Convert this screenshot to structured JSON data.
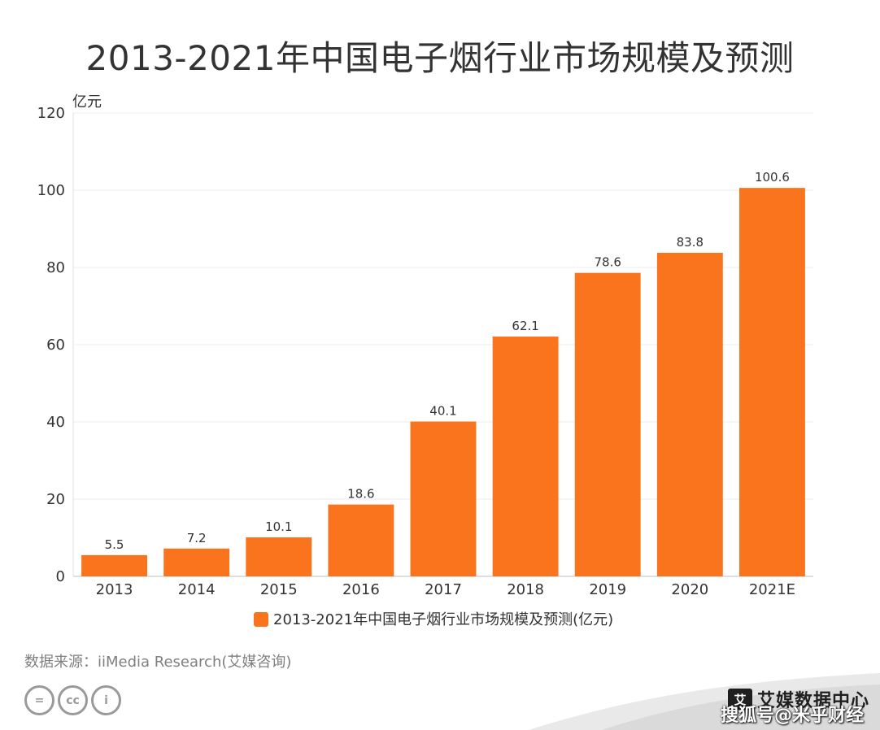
{
  "title": "2013-2021年中国电子烟行业市场规模及预测",
  "source": "数据来源：iiMedia Research(艾媒咨询)",
  "brand": {
    "logo_text": "艾",
    "name": "艾媒数据中心"
  },
  "watermark": "搜狐号@米乎财经",
  "license_icons": [
    "=",
    "cc",
    "i"
  ],
  "colors": {
    "bar": "#fa741e",
    "axis_text": "#333333",
    "grid": "#ececec"
  },
  "chart_data": {
    "type": "bar",
    "categories": [
      "2013",
      "2014",
      "2015",
      "2016",
      "2017",
      "2018",
      "2019",
      "2020",
      "2021E"
    ],
    "series": [
      {
        "name": "2013-2021年中国电子烟行业市场规模及预测(亿元)",
        "values": [
          5.5,
          7.2,
          10.1,
          18.6,
          40.1,
          62.1,
          78.6,
          83.8,
          100.6
        ],
        "labels": [
          "5.5",
          "7.2",
          "10.1",
          "18.6",
          "40.1",
          "62.1",
          "78.6",
          "83.8",
          "100.6"
        ]
      }
    ],
    "ylabel": "亿元",
    "ylim": [
      0,
      120
    ],
    "yticks": [
      0,
      20,
      40,
      60,
      80,
      100,
      120
    ],
    "grid": true,
    "legend": "bottom-center"
  }
}
